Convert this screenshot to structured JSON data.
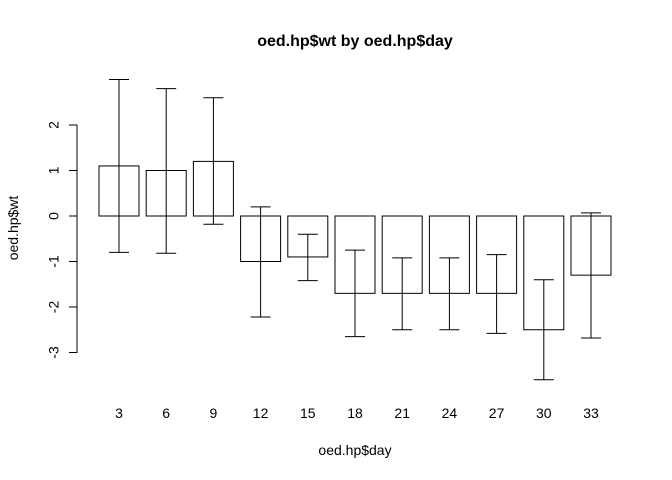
{
  "chart_data": {
    "type": "bar",
    "title": "oed.hp$wt by oed.hp$day",
    "xlabel": "oed.hp$day",
    "ylabel": "oed.hp$wt",
    "categories": [
      "3",
      "6",
      "9",
      "12",
      "15",
      "18",
      "21",
      "24",
      "27",
      "30",
      "33"
    ],
    "values": [
      1.1,
      1.0,
      1.2,
      -1.0,
      -0.9,
      -1.7,
      -1.7,
      -1.7,
      -1.7,
      -2.5,
      -1.3
    ],
    "error_upper": [
      3.0,
      2.8,
      2.6,
      0.2,
      -0.4,
      -0.75,
      -0.92,
      -0.92,
      -0.85,
      -1.4,
      0.07
    ],
    "error_lower": [
      -0.8,
      -0.82,
      -0.18,
      -2.22,
      -1.42,
      -2.65,
      -2.5,
      -2.5,
      -2.58,
      -3.6,
      -2.68
    ],
    "yticks": [
      2,
      1,
      0,
      -1,
      -2,
      -3
    ],
    "ylim": [
      -3.6,
      3.0
    ],
    "grid": false,
    "colors": {
      "bar_fill": "#ffffff",
      "stroke": "#000000"
    }
  }
}
